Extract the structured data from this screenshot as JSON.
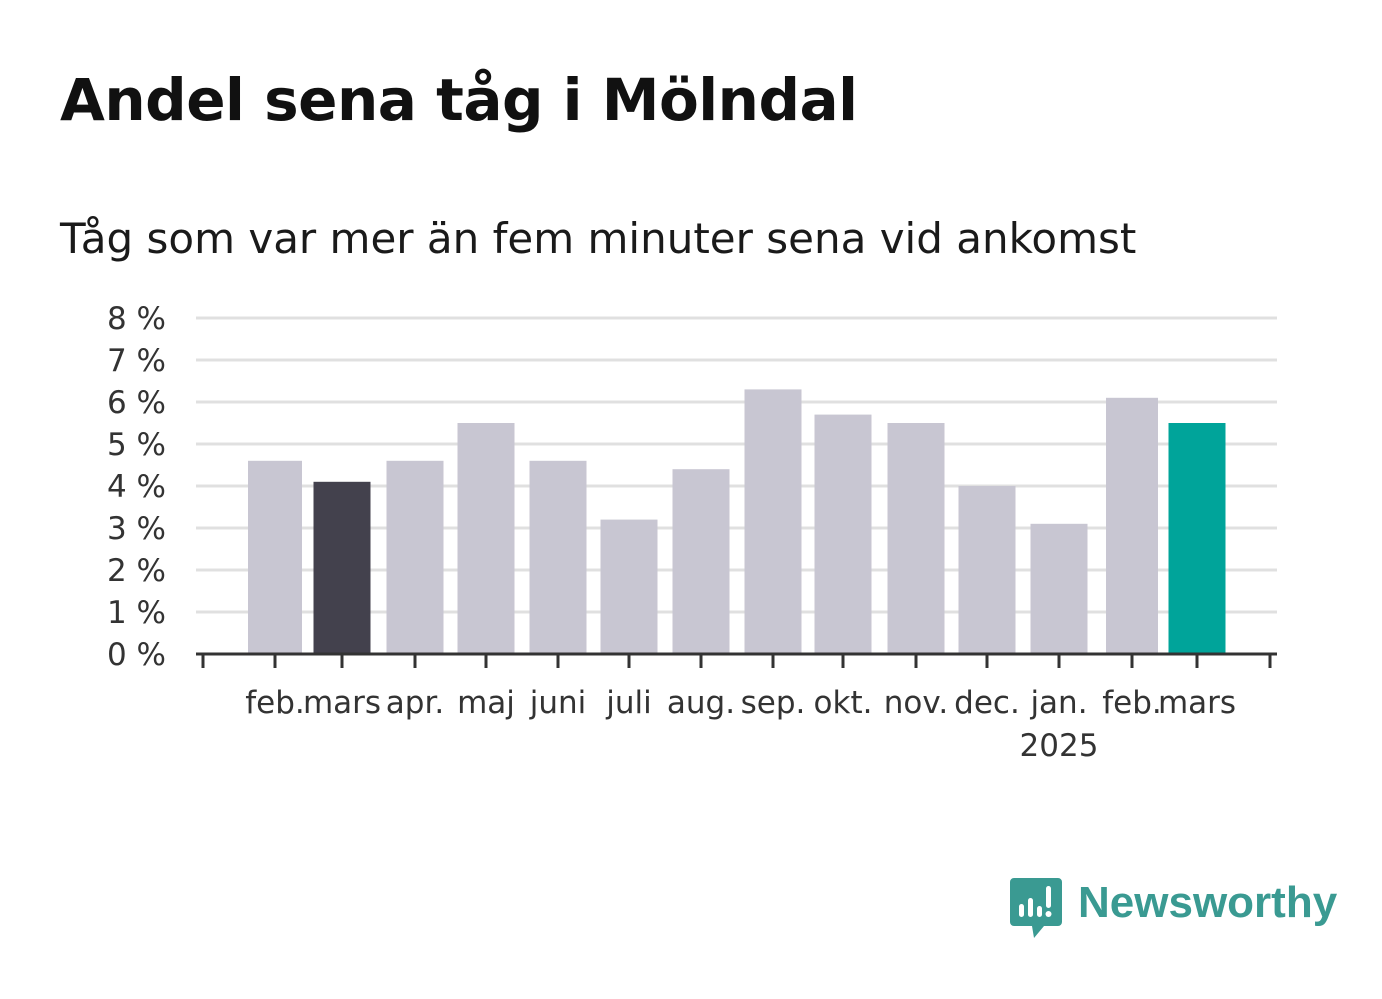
{
  "title": "Andel sena tåg i Mölndal",
  "subtitle": "Tåg som var mer än fem minuter sena vid ankomst",
  "brand": {
    "name": "Newsworthy",
    "icon": "newsworthy-logo-icon",
    "color": "#3a9a92"
  },
  "colors": {
    "default_bar": "#c8c6d2",
    "highlight_first": "#43414d",
    "highlight_last": "#00a49a",
    "grid": "#e0e0e0",
    "axis": "#333333"
  },
  "chart_data": {
    "type": "bar",
    "categories": [
      "feb.",
      "mars",
      "apr.",
      "maj",
      "juni",
      "juli",
      "aug.",
      "sep.",
      "okt.",
      "nov.",
      "dec.",
      "jan.",
      "feb.",
      "mars"
    ],
    "category_sublabels": [
      "",
      "",
      "",
      "",
      "",
      "",
      "",
      "",
      "",
      "",
      "",
      "2025",
      "",
      ""
    ],
    "values": [
      4.6,
      4.1,
      4.6,
      5.5,
      4.6,
      3.2,
      4.4,
      6.3,
      5.7,
      5.5,
      4.0,
      3.1,
      6.1,
      5.5
    ],
    "bar_colors": [
      "#c8c6d2",
      "#43414d",
      "#c8c6d2",
      "#c8c6d2",
      "#c8c6d2",
      "#c8c6d2",
      "#c8c6d2",
      "#c8c6d2",
      "#c8c6d2",
      "#c8c6d2",
      "#c8c6d2",
      "#c8c6d2",
      "#c8c6d2",
      "#00a49a"
    ],
    "title": "Andel sena tåg i Mölndal",
    "subtitle": "Tåg som var mer än fem minuter sena vid ankomst",
    "xlabel": "",
    "ylabel": "",
    "ylim": [
      0,
      8
    ],
    "yticks": [
      0,
      1,
      2,
      3,
      4,
      5,
      6,
      7,
      8
    ],
    "ytick_labels": [
      "0 %",
      "1 %",
      "2 %",
      "3 %",
      "4 %",
      "5 %",
      "6 %",
      "7 %",
      "8 %"
    ],
    "grid": true,
    "legend": "none"
  }
}
